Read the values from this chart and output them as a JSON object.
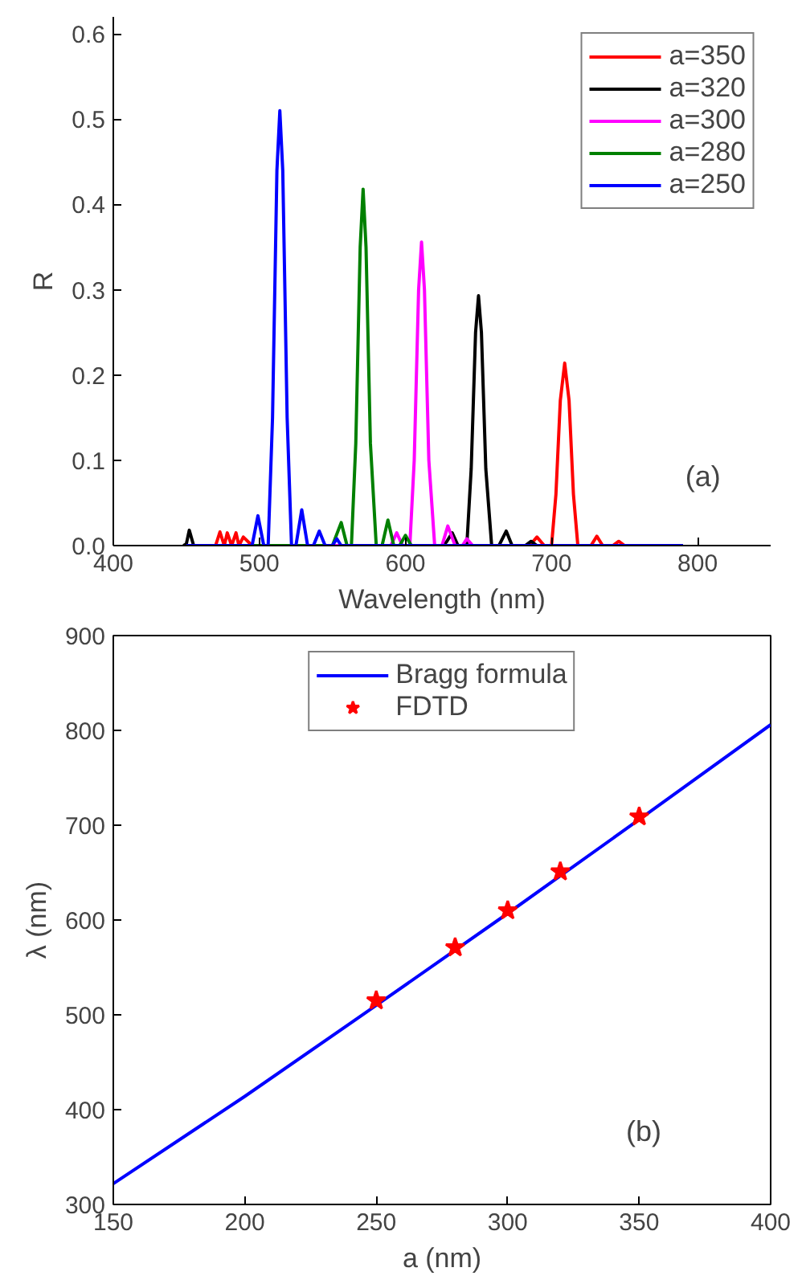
{
  "chart_data": [
    {
      "type": "line",
      "xlabel": "Wavelength (nm)",
      "ylabel": "R",
      "xlim": [
        400,
        850
      ],
      "ylim": [
        0,
        0.62
      ],
      "xticks": [
        400,
        500,
        600,
        700,
        800
      ],
      "yticks": [
        {
          "value": 0,
          "label": "0.0"
        },
        0.1,
        0.2,
        0.3,
        0.4,
        0.5,
        0.6
      ],
      "grid": false,
      "legend": "top right",
      "annotations": [
        "(a)"
      ],
      "series": [
        {
          "name": "a=350",
          "color": "#ff0000",
          "x": [
            450,
            470,
            473,
            476,
            478,
            481,
            484,
            486,
            489,
            495,
            685,
            690,
            695,
            700,
            703,
            706,
            709,
            712,
            715,
            718,
            722,
            727,
            731,
            735,
            742,
            746,
            750,
            790
          ],
          "values": [
            0,
            0,
            0.016,
            0,
            0.015,
            0,
            0.015,
            0,
            0.01,
            0,
            0,
            0.01,
            0,
            0,
            0.06,
            0.17,
            0.214,
            0.17,
            0.06,
            0,
            0,
            0,
            0.011,
            0,
            0,
            0.005,
            0,
            0
          ]
        },
        {
          "name": "a=320",
          "color": "#000000",
          "x": [
            448,
            450,
            452,
            455,
            625,
            628,
            632,
            636,
            642,
            645,
            648,
            650,
            652,
            655,
            659,
            664,
            669,
            673,
            682,
            686,
            690,
            790
          ],
          "values": [
            0,
            0.002,
            0.018,
            0,
            0,
            0.004,
            0.015,
            0,
            0,
            0.09,
            0.25,
            0.293,
            0.25,
            0.09,
            0,
            0,
            0.017,
            0,
            0,
            0.005,
            0,
            0
          ]
        },
        {
          "name": "a=300",
          "color": "#ff00ff",
          "x": [
            450,
            590,
            594,
            598,
            603,
            606,
            609,
            611,
            613,
            616,
            620,
            625,
            629,
            634,
            639,
            642,
            646,
            790
          ],
          "values": [
            0,
            0,
            0.015,
            0,
            0,
            0.1,
            0.3,
            0.356,
            0.3,
            0.1,
            0,
            0,
            0.023,
            0,
            0,
            0.008,
            0,
            0
          ]
        },
        {
          "name": "a=280",
          "color": "#008000",
          "x": [
            450,
            550,
            556,
            560,
            563,
            566,
            569,
            571,
            573,
            576,
            580,
            584,
            588,
            592,
            596,
            600,
            604,
            790
          ],
          "values": [
            0,
            0,
            0.027,
            0,
            0,
            0.12,
            0.35,
            0.418,
            0.35,
            0.12,
            0,
            0,
            0.03,
            0,
            0,
            0.012,
            0,
            0
          ]
        },
        {
          "name": "a=250",
          "color": "#0000ff",
          "x": [
            450,
            495,
            499,
            503,
            506,
            509,
            512,
            514,
            516,
            519,
            522,
            525,
            529,
            533,
            537,
            541,
            545,
            550,
            553,
            556,
            790
          ],
          "values": [
            0,
            0,
            0.035,
            0,
            0,
            0.15,
            0.44,
            0.51,
            0.44,
            0.15,
            0,
            0,
            0.042,
            0,
            0,
            0.017,
            0,
            0,
            0.008,
            0,
            0
          ]
        }
      ]
    },
    {
      "type": "line",
      "xlabel": "a (nm)",
      "ylabel": "λ (nm)",
      "xlim": [
        150,
        400
      ],
      "ylim": [
        300,
        900
      ],
      "xticks": [
        150,
        200,
        250,
        300,
        350,
        400
      ],
      "yticks": [
        300,
        400,
        500,
        600,
        700,
        800,
        900
      ],
      "grid": false,
      "legend": "top",
      "annotations": [
        "(b)"
      ],
      "series": [
        {
          "name": "Bragg formula",
          "type": "line",
          "color": "#0000ff",
          "x": [
            150,
            200,
            250,
            300,
            350,
            400
          ],
          "values": [
            322,
            414,
            510,
            607,
            706,
            806
          ]
        },
        {
          "name": "FDTD",
          "type": "scatter",
          "marker": "star",
          "color": "#ff0000",
          "x": [
            250,
            280,
            300,
            320,
            350
          ],
          "values": [
            515,
            571,
            610,
            651,
            709
          ]
        }
      ]
    }
  ]
}
